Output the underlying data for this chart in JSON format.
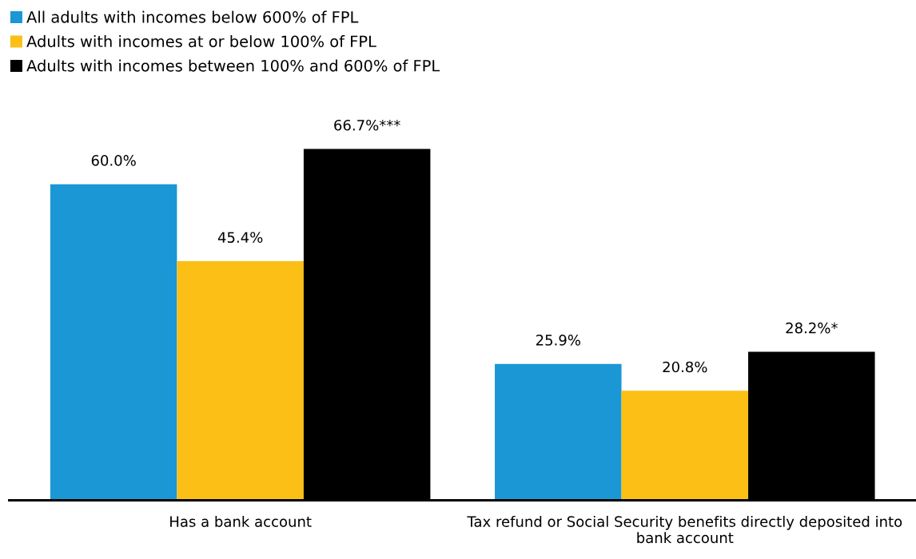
{
  "chart_data": {
    "type": "bar",
    "categories": [
      "Has a bank account",
      "Tax refund or Social Security benefits directly deposited into bank account"
    ],
    "series": [
      {
        "name": "All adults with incomes below 600% of FPL",
        "color": "#1b97d5",
        "values": [
          60.0,
          25.9
        ],
        "value_labels": [
          "60.0%",
          "25.9%"
        ]
      },
      {
        "name": "Adults with incomes at or below 100% of FPL",
        "color": "#fbbf16",
        "values": [
          45.4,
          20.8
        ],
        "value_labels": [
          "45.4%",
          "20.8%"
        ]
      },
      {
        "name": "Adults with incomes between 100% and 600% of FPL",
        "color": "#000000",
        "values": [
          66.7,
          28.2
        ],
        "value_labels": [
          "66.7%***",
          "28.2%*"
        ]
      }
    ],
    "legend": "top left",
    "grid": false,
    "tick_labels": "x"
  }
}
